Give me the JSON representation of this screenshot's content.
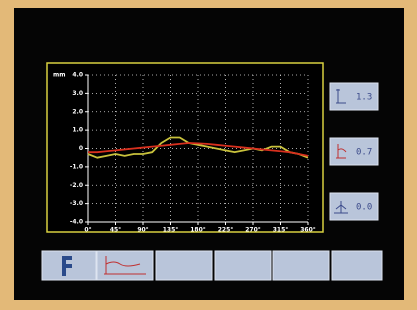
{
  "chart_data": {
    "type": "line",
    "y_label": "mm",
    "x": [
      0,
      15,
      30,
      45,
      60,
      75,
      90,
      105,
      120,
      135,
      150,
      165,
      180,
      195,
      210,
      225,
      240,
      255,
      270,
      285,
      300,
      315,
      330,
      345,
      360
    ],
    "series": [
      {
        "color": "#c9c23c",
        "values": [
          -0.3,
          -0.5,
          -0.4,
          -0.3,
          -0.4,
          -0.3,
          -0.3,
          -0.2,
          0.3,
          0.6,
          0.6,
          0.3,
          0.2,
          0.1,
          0.0,
          -0.1,
          -0.2,
          -0.1,
          0.0,
          -0.1,
          0.1,
          0.1,
          -0.2,
          -0.3,
          -0.5
        ]
      },
      {
        "color": "#d8301e",
        "values": [
          -0.2,
          -0.2,
          -0.15,
          -0.1,
          -0.05,
          0.0,
          0.05,
          0.1,
          0.15,
          0.2,
          0.25,
          0.3,
          0.28,
          0.25,
          0.2,
          0.15,
          0.1,
          0.05,
          0.0,
          -0.05,
          -0.1,
          -0.15,
          -0.2,
          -0.3,
          -0.4
        ]
      }
    ],
    "xlim": [
      0,
      360
    ],
    "xticks": [
      {
        "value": 0,
        "label": "0°"
      },
      {
        "value": 45,
        "label": "45°"
      },
      {
        "value": 90,
        "label": "90°"
      },
      {
        "value": 135,
        "label": "135°"
      },
      {
        "value": 180,
        "label": "180°"
      },
      {
        "value": 225,
        "label": "225°"
      },
      {
        "value": 270,
        "label": "270°"
      },
      {
        "value": 315,
        "label": "315°"
      },
      {
        "value": 360,
        "label": "360°"
      }
    ],
    "ylim": [
      -4,
      4
    ],
    "yticks": [
      {
        "value": 4,
        "label": "4.0"
      },
      {
        "value": 3,
        "label": "3.0"
      },
      {
        "value": 2,
        "label": "2.0"
      },
      {
        "value": 1,
        "label": "1.0"
      },
      0,
      {
        "value": -1,
        "label": "-1.0"
      },
      {
        "value": -2,
        "label": "-2.0"
      },
      {
        "value": -3,
        "label": "-3.0"
      },
      {
        "value": -4,
        "label": "-4.0"
      }
    ],
    "grid": true
  },
  "readouts": [
    "1.3",
    "0.7",
    "0.0"
  ]
}
